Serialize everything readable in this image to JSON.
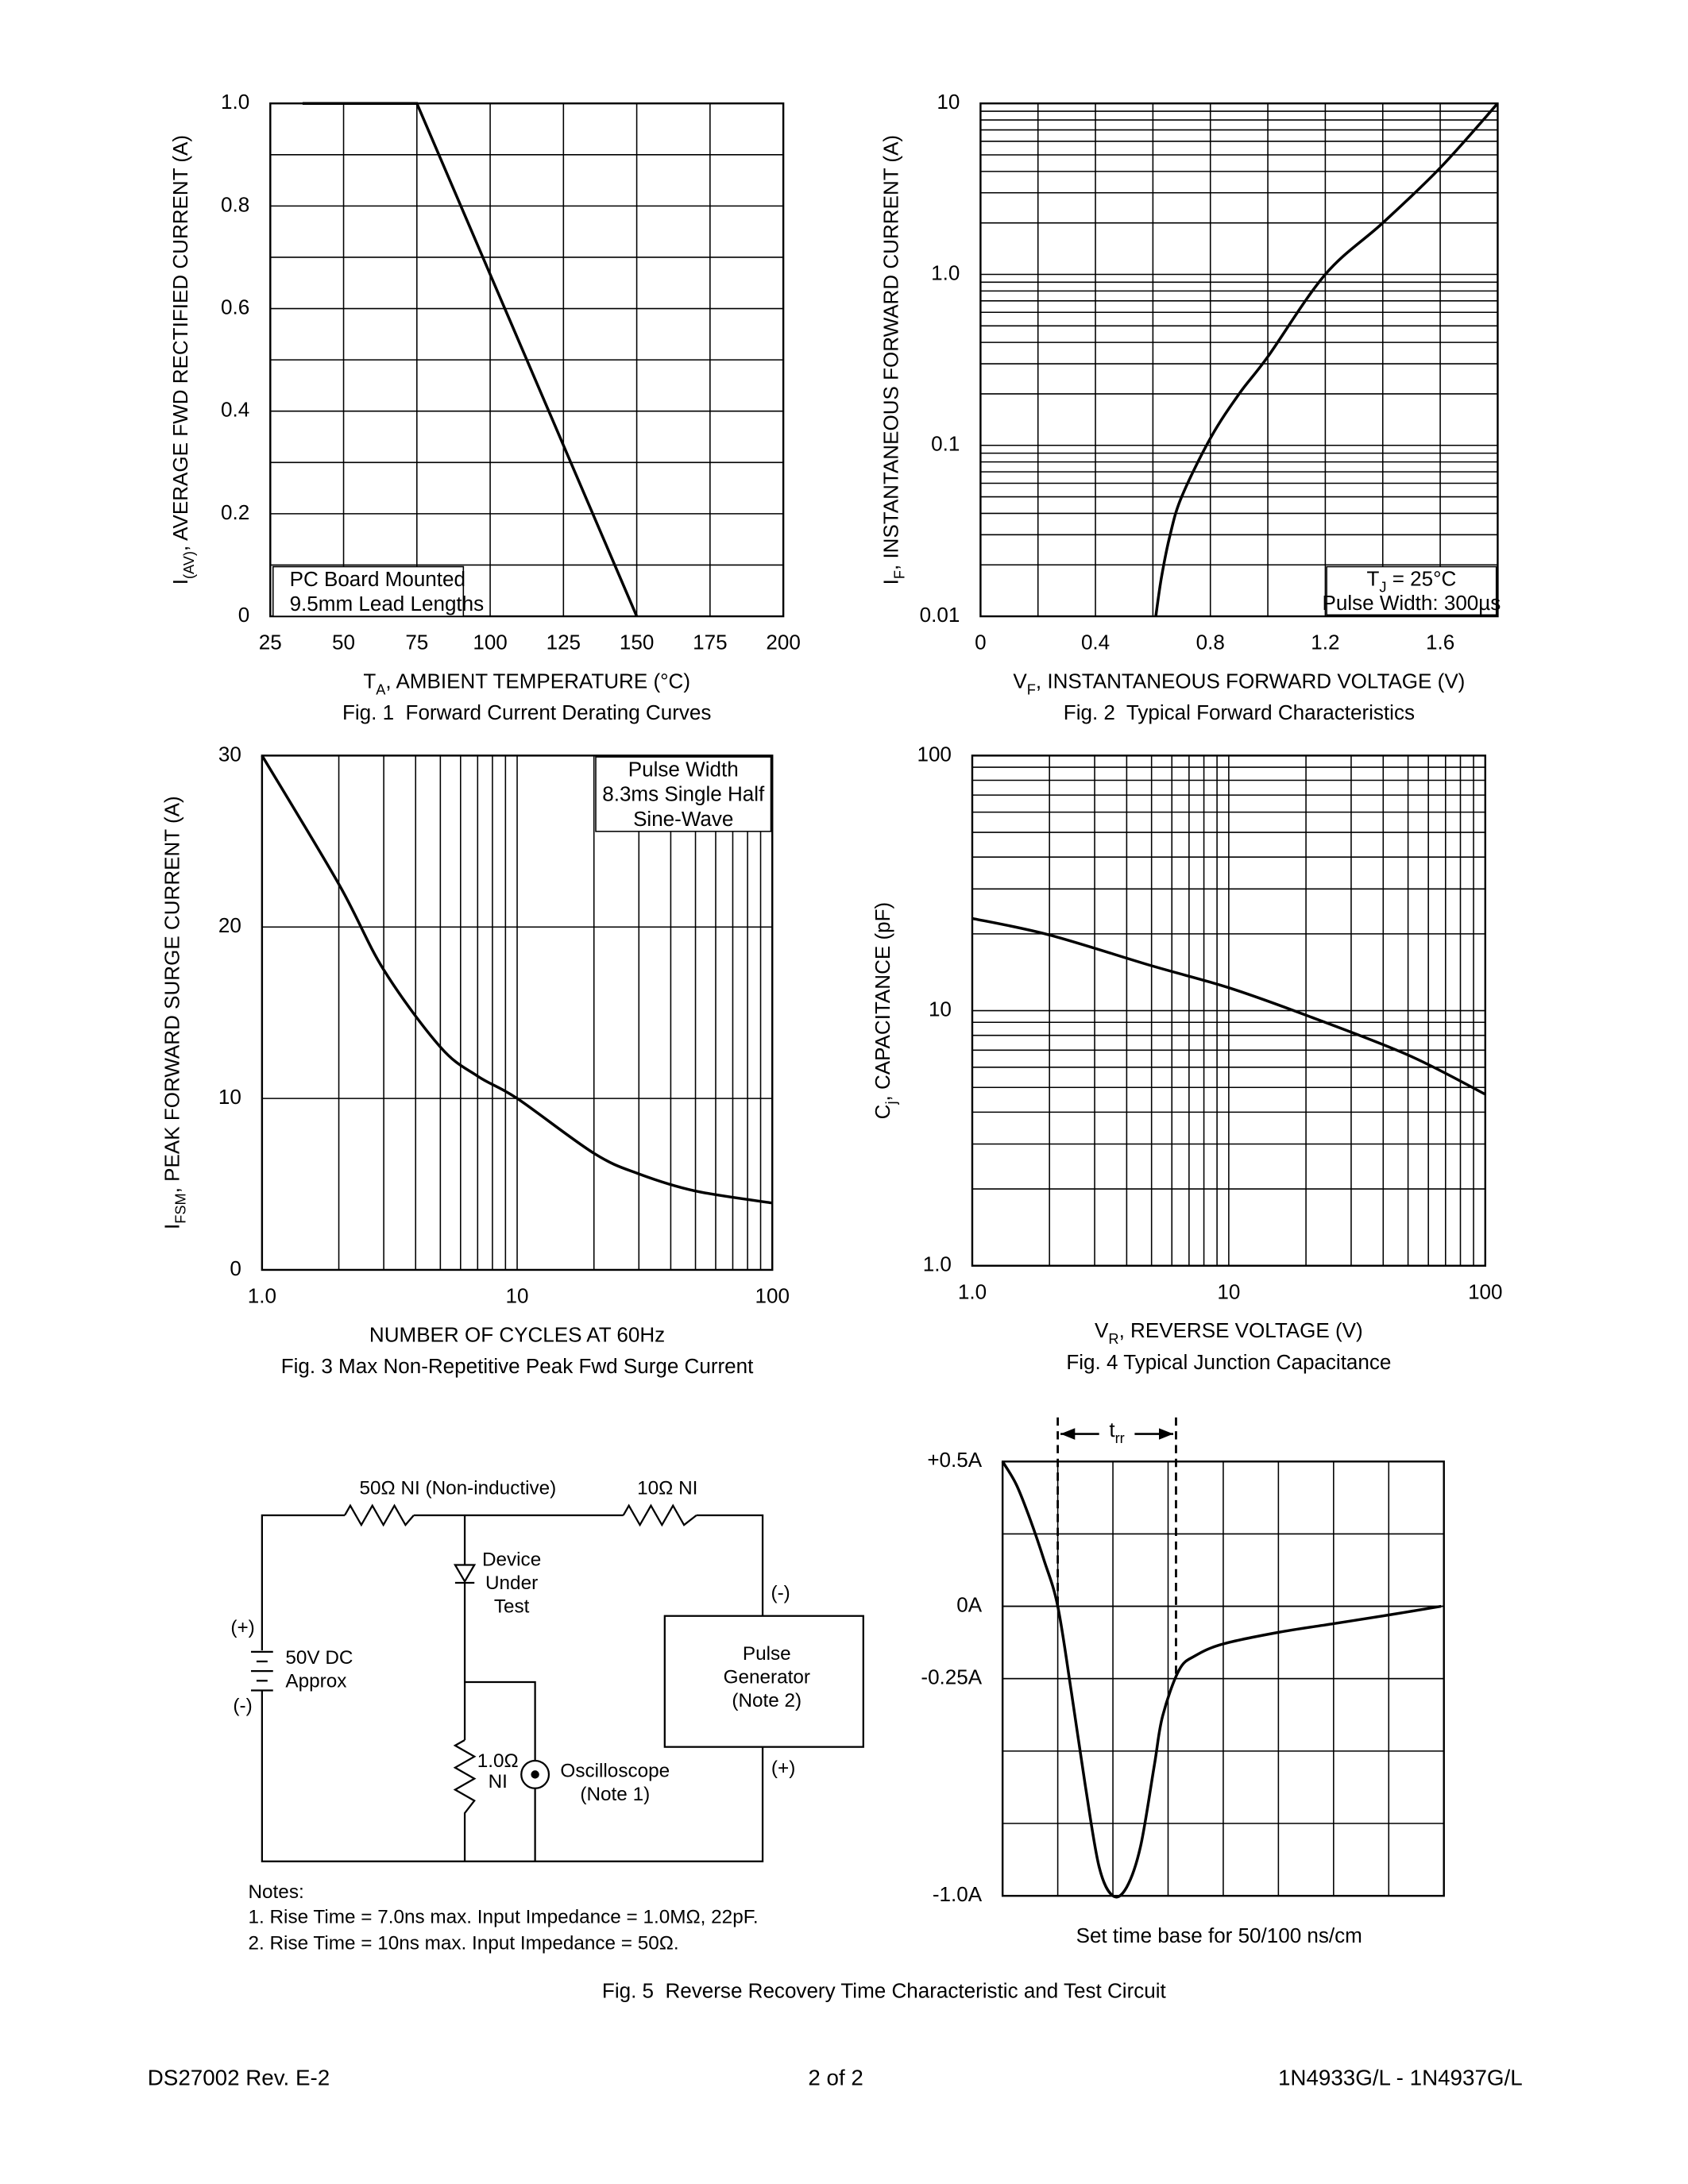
{
  "chart_data": [
    {
      "type": "line",
      "caption": "Fig. 1  Forward Current Derating Curves",
      "ylabel": [
        "I",
        "(AV)",
        ", AVERAGE FWD RECTIFIED CURRENT (A)"
      ],
      "xlabel": [
        "T",
        "A",
        ", AMBIENT TEMPERATURE (°C)"
      ],
      "annotation": [
        [
          "PC Board Mounted"
        ],
        [
          "9.5mm Lead Lengths"
        ]
      ],
      "x": [
        36,
        75,
        150
      ],
      "values": [
        1,
        1,
        0
      ],
      "color": "#000000",
      "smooth": false,
      "xscale": "linear",
      "yscale": "linear",
      "xlim": [
        25,
        200
      ],
      "ylim": [
        0,
        1
      ],
      "xticks": [
        25,
        50,
        75,
        100,
        125,
        150,
        175,
        200
      ],
      "yticks": [
        0,
        0.2,
        0.4,
        0.6,
        0.8,
        {
          "value": 1,
          "label": "1.0"
        }
      ],
      "grid": true,
      "minor_grid": "y"
    },
    {
      "type": "line",
      "caption": "Fig. 2  Typical Forward Characteristics",
      "ylabel": [
        "I",
        "F",
        ", INSTANTANEOUS FORWARD CURRENT (A)"
      ],
      "xlabel": [
        "V",
        "F",
        ", INSTANTANEOUS FORWARD VOLTAGE (V)"
      ],
      "annotation": [
        [
          "T",
          "J",
          " = 25°C"
        ],
        [
          "Pulse Width: 300µs"
        ]
      ],
      "x": [
        0.61,
        0.63,
        0.66,
        0.7,
        0.8,
        0.9,
        1.0,
        1.2,
        1.4,
        1.6,
        1.8
      ],
      "values": [
        0.01,
        0.017,
        0.03,
        0.05,
        0.11,
        0.2,
        0.33,
        1.0,
        2.0,
        4.2,
        10
      ],
      "color": "#000000",
      "smooth": true,
      "xscale": "linear",
      "yscale": "log",
      "xlim": [
        0,
        1.8
      ],
      "ylim": [
        0.01,
        10
      ],
      "xticks": [
        0,
        0.4,
        0.8,
        1.2,
        1.6
      ],
      "yticks": [
        0.01,
        0.1,
        {
          "value": 1,
          "label": "1.0"
        },
        10
      ],
      "grid": true,
      "minor_grid": "x"
    },
    {
      "type": "line",
      "caption": "Fig. 3 Max Non-Repetitive Peak Fwd Surge Current",
      "ylabel": [
        "I",
        "FSM",
        ", PEAK FORWARD SURGE CURRENT (A)"
      ],
      "xlabel": [
        "NUMBER OF CYCLES AT 60Hz"
      ],
      "annotation": [
        [
          "Pulse Width"
        ],
        [
          "8.3ms Single Half"
        ],
        [
          "Sine-Wave"
        ]
      ],
      "x": [
        1,
        2,
        3,
        5,
        7,
        10,
        20,
        30,
        50,
        100
      ],
      "values": [
        30,
        22.5,
        17.5,
        13,
        11.3,
        10,
        6.8,
        5.6,
        4.6,
        3.9
      ],
      "color": "#000000",
      "smooth": true,
      "xscale": "log",
      "yscale": "linear",
      "xlim": [
        1,
        100
      ],
      "ylim": [
        0,
        30
      ],
      "xticks": [
        {
          "value": 1,
          "label": "1.0"
        },
        10,
        100
      ],
      "yticks": [
        0,
        10,
        20,
        30
      ],
      "grid": true,
      "minor_grid": "none"
    },
    {
      "type": "line",
      "caption": "Fig. 4 Typical Junction Capacitance",
      "ylabel": [
        "C",
        "j",
        ", CAPACITANCE (pF)"
      ],
      "xlabel": [
        "V",
        "R",
        ", REVERSE VOLTAGE (V)"
      ],
      "x": [
        1,
        2,
        5,
        10,
        20,
        50,
        100
      ],
      "values": [
        23,
        19.8,
        15,
        12.3,
        9.6,
        6.7,
        4.7
      ],
      "color": "#000000",
      "smooth": true,
      "xscale": "log",
      "yscale": "log",
      "xlim": [
        1,
        100
      ],
      "ylim": [
        1,
        100
      ],
      "xticks": [
        {
          "value": 1,
          "label": "1.0"
        },
        10,
        100
      ],
      "yticks": [
        {
          "value": 1,
          "label": "1.0"
        },
        10,
        100
      ],
      "grid": true,
      "minor_grid": "none"
    },
    {
      "type": "line",
      "marker_label": [
        "t",
        "rr"
      ],
      "note": "Set time base for 50/100 ns/cm",
      "x": [
        0,
        0.25,
        0.5,
        0.75,
        1.0,
        1.25,
        1.5,
        1.75,
        2.0,
        2.25,
        2.5,
        2.75,
        2.9,
        3.2,
        3.5,
        4,
        5,
        6,
        7,
        7.95
      ],
      "values": [
        0.5,
        0.42,
        0.3,
        0.16,
        0,
        -0.3,
        -0.62,
        -0.9,
        -1.0,
        -0.97,
        -0.83,
        -0.55,
        -0.38,
        -0.22,
        -0.17,
        -0.13,
        -0.09,
        -0.06,
        -0.03,
        0
      ],
      "color": "#000000",
      "smooth": true,
      "xscale": "linear",
      "yscale": "linear",
      "xlim": [
        0,
        8
      ],
      "ylim": [
        -1,
        0.5
      ],
      "yticks": [
        {
          "value": 0.5,
          "label": "+0.5A"
        },
        {
          "value": 0,
          "label": "0A"
        },
        {
          "value": -0.25,
          "label": "-0.25A"
        },
        {
          "value": -1,
          "label": "-1.0A"
        }
      ],
      "grid": true,
      "minor_grid": "none"
    }
  ],
  "circuit": {
    "resistor_1": "50Ω NI (Non-inductive)",
    "resistor_2": "10Ω NI",
    "device": [
      "Device",
      "Under",
      "Test"
    ],
    "source": [
      "(+)",
      "50V DC",
      "Approx",
      "(-)"
    ],
    "generator": [
      "(-)",
      "Pulse",
      "Generator",
      "(Note 2)",
      "(+)"
    ],
    "shunt": [
      "1.0Ω",
      "NI"
    ],
    "scope": [
      "Oscilloscope",
      "(Note 1)"
    ],
    "notes": [
      "Notes:",
      "1. Rise Time = 7.0ns max. Input Impedance = 1.0MΩ, 22pF.",
      "2. Rise Time = 10ns max. Input Impedance = 50Ω."
    ]
  },
  "figure_5_caption": "Fig. 5  Reverse Recovery Time Characteristic and Test Circuit",
  "footer": {
    "left": "DS27002 Rev. E-2",
    "center": "2 of 2",
    "right": "1N4933G/L - 1N4937G/L"
  }
}
